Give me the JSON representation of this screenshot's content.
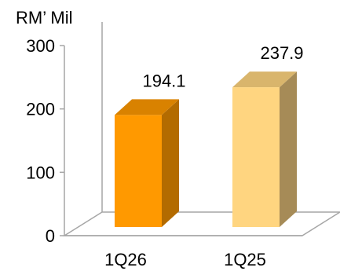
{
  "chart_data": {
    "type": "bar",
    "unit_label": "RM’ Mil",
    "categories": [
      "1Q26",
      "1Q25"
    ],
    "values": [
      194.1,
      237.9
    ],
    "data_labels": [
      "194.1",
      "237.9"
    ],
    "ylim": [
      0,
      300
    ],
    "yticks": [
      0,
      100,
      200,
      300
    ],
    "grid": false,
    "three_d": true,
    "colors": {
      "bars": [
        {
          "front": "#FF9900",
          "top": "#D98200",
          "side": "#B36B00"
        },
        {
          "front": "#FFD580",
          "top": "#D9B56C",
          "side": "#A68B57"
        }
      ],
      "axis": "#A6A6A6",
      "text": "#000000"
    }
  }
}
